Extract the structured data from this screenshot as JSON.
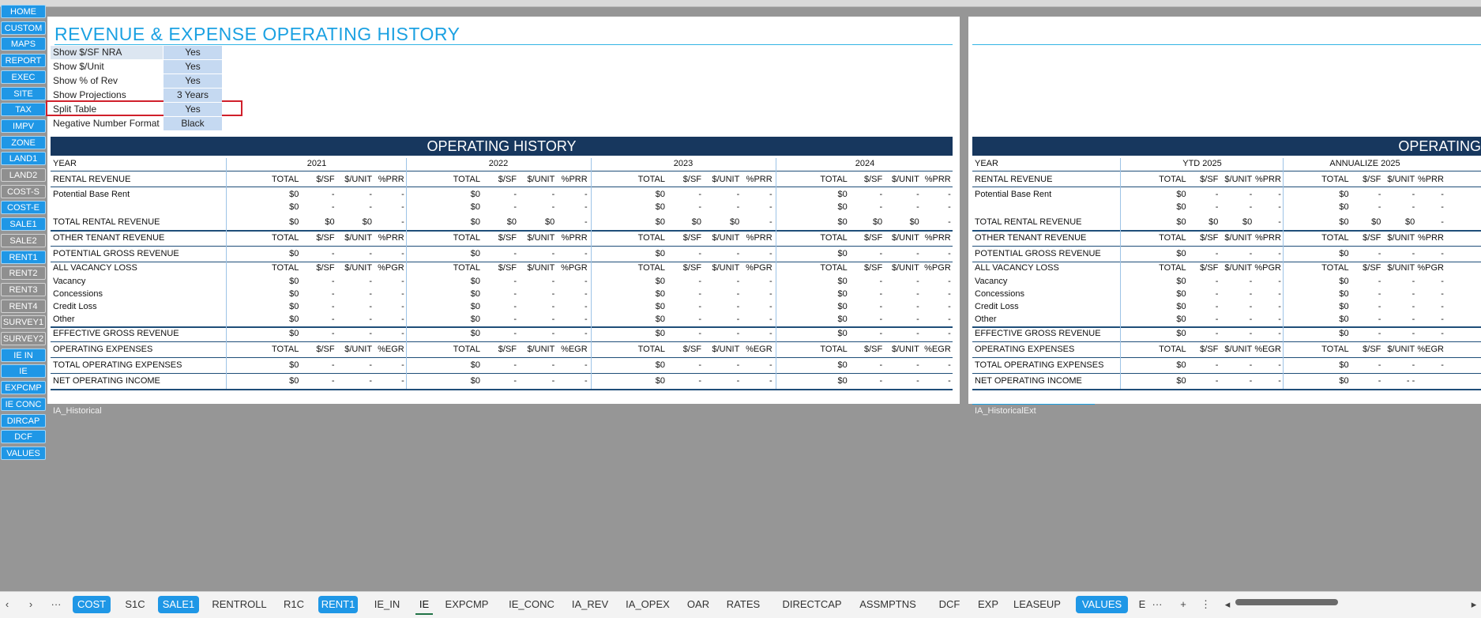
{
  "nav": [
    "HOME",
    "CUSTOM",
    "MAPS",
    "REPORT",
    "EXEC",
    "SITE",
    "TAX",
    "IMPV",
    "ZONE",
    "LAND1",
    "LAND2",
    "COST-S",
    "COST-E",
    "SALE1",
    "SALE2",
    "RENT1",
    "RENT2",
    "RENT3",
    "RENT4",
    "SURVEY1",
    "SURVEY2",
    "IE IN",
    "IE",
    "EXPCMP",
    "IE CONC",
    "DIRCAP",
    "DCF",
    "VALUES"
  ],
  "title": "REVENUE & EXPENSE OPERATING HISTORY",
  "options": [
    {
      "label": "Show $/SF NRA",
      "value": "Yes"
    },
    {
      "label": "Show $/Unit",
      "value": "Yes"
    },
    {
      "label": "Show % of Rev",
      "value": "Yes"
    },
    {
      "label": "Show Projections",
      "value": "3 Years"
    },
    {
      "label": "Split Table",
      "value": "Yes"
    },
    {
      "label": "Negative Number Format",
      "value": "Black"
    }
  ],
  "left_table": {
    "banner": "OPERATING HISTORY",
    "year_label": "YEAR",
    "years": [
      "2021",
      "2022",
      "2023",
      "2024"
    ],
    "sheet_name": "IA_Historical"
  },
  "right_table": {
    "banner": "OPERATING",
    "year_label": "YEAR",
    "years": [
      "YTD 2025",
      "ANNUALIZE 2025"
    ],
    "sheet_name": "IA_HistoricalExt"
  },
  "rows": {
    "rental_revenue": "RENTAL REVENUE",
    "potential_base_rent": "Potential Base Rent",
    "total_rental_revenue": "TOTAL RENTAL REVENUE",
    "other_tenant_revenue": "OTHER TENANT REVENUE",
    "potential_gross_revenue": "POTENTIAL GROSS REVENUE",
    "all_vacancy_loss": "ALL VACANCY LOSS",
    "vacancy": "Vacancy",
    "concessions": "Concessions",
    "credit_loss": "Credit Loss",
    "other": "Other",
    "effective_gross_revenue": "EFFECTIVE GROSS REVENUE",
    "operating_expenses": "OPERATING EXPENSES",
    "total_operating_expenses": "TOTAL OPERATING EXPENSES",
    "net_operating_income": "NET OPERATING INCOME"
  },
  "cols": {
    "total": "TOTAL",
    "psf": "$/SF",
    "punit": "$/UNIT",
    "prr": "%PRR",
    "pgr": "%PGR",
    "egr": "%EGR",
    "zero": "$0",
    "dash": "-",
    "dashdash": "- -"
  },
  "tabs": [
    "COST",
    "S1C",
    "SALE1",
    "RENTROLL",
    "R1C",
    "RENT1",
    "IE_IN",
    "IE",
    "EXPCMP",
    "IE_CONC",
    "IA_REV",
    "IA_OPEX",
    "OAR",
    "RATES",
    "DIRECTCAP",
    "ASSMPTNS",
    "DCF",
    "EXP",
    "LEASEUP",
    "VALUES",
    "E"
  ],
  "tab_icons": {
    "prev": "‹",
    "next": "›",
    "more": "···",
    "more2": "···",
    "add": "+",
    "menu": "⋮"
  }
}
